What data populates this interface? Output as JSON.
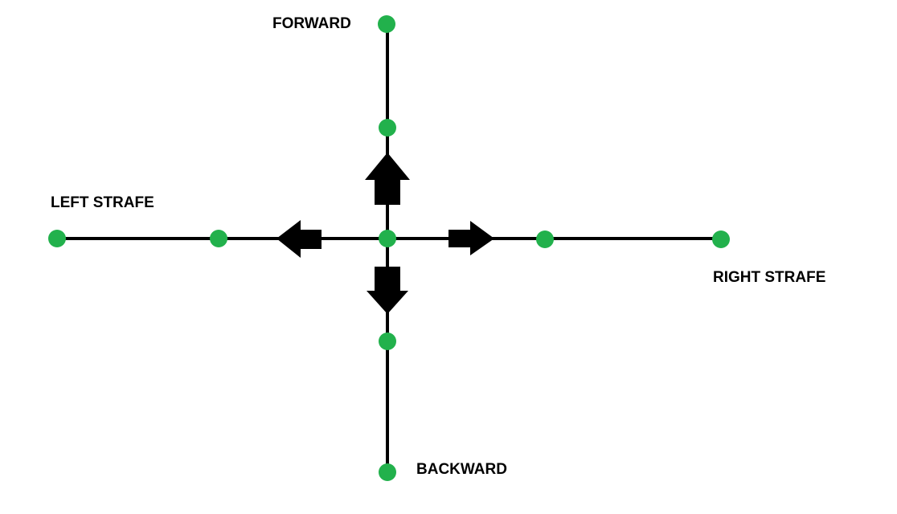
{
  "labels": {
    "forward": "FORWARD",
    "left_strafe": "LEFT STRAFE",
    "right_strafe": "RIGHT STRAFE",
    "backward": "BACKWARD"
  },
  "colors": {
    "node": "#22b14c",
    "line": "#000000",
    "arrow": "#000000",
    "background": "#ffffff"
  }
}
